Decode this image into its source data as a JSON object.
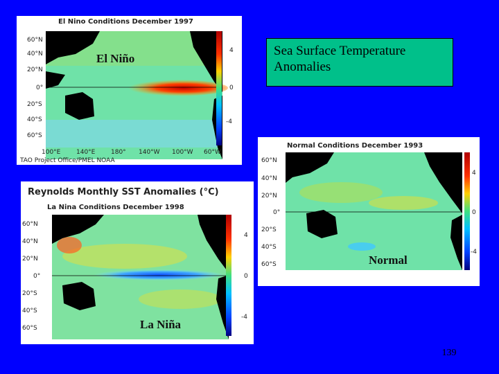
{
  "slide": {
    "title_lines": [
      "Sea Surface Temperature",
      "Anomalies"
    ],
    "page_number": "139"
  },
  "maps": [
    {
      "id": "el-nino",
      "header": "El Nino Conditions December 1997",
      "label": "El Niño",
      "lat_labels": [
        "60°N",
        "40°N",
        "20°N",
        "0°",
        "20°S",
        "40°S",
        "60°S"
      ],
      "lon_labels": [
        "100°E",
        "140°E",
        "180°",
        "140°W",
        "100°W",
        "60°W"
      ],
      "scale_labels": [
        "4",
        "0",
        "-4"
      ],
      "credit": "TAO Project Office/PMEL NOAA"
    },
    {
      "id": "normal",
      "header": "Normal Conditions December 1993",
      "label": "Normal",
      "lat_labels": [
        "60°N",
        "40°N",
        "20°N",
        "0°",
        "20°S",
        "40°S",
        "60°S"
      ],
      "scale_labels": [
        "4",
        "0",
        "-4"
      ]
    },
    {
      "id": "la-nina",
      "header": "Reynolds Monthly SST Anomalies (°C)",
      "subheader": "La Nina Conditions December 1998",
      "label": "La Niña",
      "lat_labels": [
        "60°N",
        "40°N",
        "20°N",
        "0°",
        "20°S",
        "40°S",
        "60°S"
      ],
      "scale_labels": [
        "4",
        "0",
        "-4"
      ]
    }
  ]
}
